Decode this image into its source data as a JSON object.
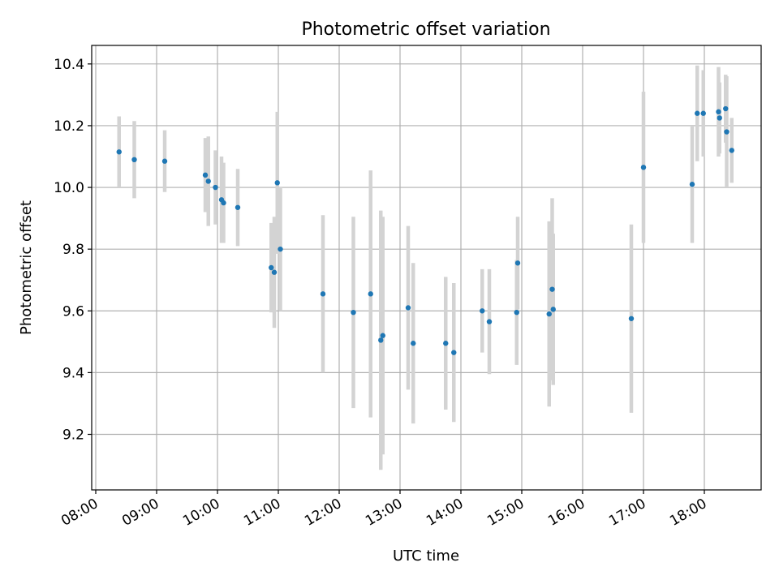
{
  "chart_data": {
    "type": "scatter",
    "title": "Photometric offset variation",
    "xlabel": "UTC time",
    "ylabel": "Photometric offset",
    "x_range": [
      "07:56",
      "18:56"
    ],
    "ylim": [
      9.02,
      10.46
    ],
    "x_ticks": [
      "08:00",
      "09:00",
      "10:00",
      "11:00",
      "12:00",
      "13:00",
      "14:00",
      "15:00",
      "16:00",
      "17:00",
      "18:00"
    ],
    "y_ticks": [
      "9.2",
      "9.4",
      "9.6",
      "9.8",
      "10.0",
      "10.2",
      "10.4"
    ],
    "grid": true,
    "colors": {
      "point": "#1f77b4",
      "errorbar": "#d3d3d3",
      "grid": "#b0b0b0"
    },
    "points": [
      {
        "x": "08:23",
        "y": 10.115,
        "err": 0.115
      },
      {
        "x": "08:38",
        "y": 10.09,
        "err": 0.125
      },
      {
        "x": "09:08",
        "y": 10.085,
        "err": 0.1
      },
      {
        "x": "09:48",
        "y": 10.04,
        "err": 0.12
      },
      {
        "x": "09:51",
        "y": 10.02,
        "err": 0.145
      },
      {
        "x": "09:58",
        "y": 10.0,
        "err": 0.12
      },
      {
        "x": "10:04",
        "y": 9.96,
        "err": 0.14
      },
      {
        "x": "10:06",
        "y": 9.95,
        "err": 0.13
      },
      {
        "x": "10:20",
        "y": 9.935,
        "err": 0.125
      },
      {
        "x": "10:53",
        "y": 9.74,
        "err": 0.145
      },
      {
        "x": "10:56",
        "y": 9.725,
        "err": 0.18
      },
      {
        "x": "10:59",
        "y": 10.015,
        "err": 0.23
      },
      {
        "x": "11:02",
        "y": 9.8,
        "err": 0.2
      },
      {
        "x": "11:44",
        "y": 9.655,
        "err": 0.255
      },
      {
        "x": "12:14",
        "y": 9.595,
        "err": 0.31
      },
      {
        "x": "12:31",
        "y": 9.655,
        "err": 0.4
      },
      {
        "x": "12:41",
        "y": 9.505,
        "err": 0.42
      },
      {
        "x": "12:43",
        "y": 9.52,
        "err": 0.385
      },
      {
        "x": "13:08",
        "y": 9.61,
        "err": 0.265
      },
      {
        "x": "13:13",
        "y": 9.495,
        "err": 0.26
      },
      {
        "x": "13:45",
        "y": 9.495,
        "err": 0.215
      },
      {
        "x": "13:53",
        "y": 9.465,
        "err": 0.225
      },
      {
        "x": "14:21",
        "y": 9.6,
        "err": 0.135
      },
      {
        "x": "14:28",
        "y": 9.565,
        "err": 0.17
      },
      {
        "x": "14:55",
        "y": 9.595,
        "err": 0.17
      },
      {
        "x": "14:56",
        "y": 9.755,
        "err": 0.15
      },
      {
        "x": "15:27",
        "y": 9.59,
        "err": 0.3
      },
      {
        "x": "15:30",
        "y": 9.67,
        "err": 0.295
      },
      {
        "x": "15:31",
        "y": 9.605,
        "err": 0.245
      },
      {
        "x": "16:48",
        "y": 9.575,
        "err": 0.305
      },
      {
        "x": "17:00",
        "y": 10.065,
        "err": 0.245
      },
      {
        "x": "17:48",
        "y": 10.01,
        "err": 0.19
      },
      {
        "x": "17:53",
        "y": 10.24,
        "err": 0.155
      },
      {
        "x": "17:59",
        "y": 10.24,
        "err": 0.14
      },
      {
        "x": "18:14",
        "y": 10.245,
        "err": 0.145
      },
      {
        "x": "18:15",
        "y": 10.225,
        "err": 0.115
      },
      {
        "x": "18:21",
        "y": 10.255,
        "err": 0.11
      },
      {
        "x": "18:22",
        "y": 10.18,
        "err": 0.18
      },
      {
        "x": "18:27",
        "y": 10.12,
        "err": 0.105
      }
    ]
  }
}
